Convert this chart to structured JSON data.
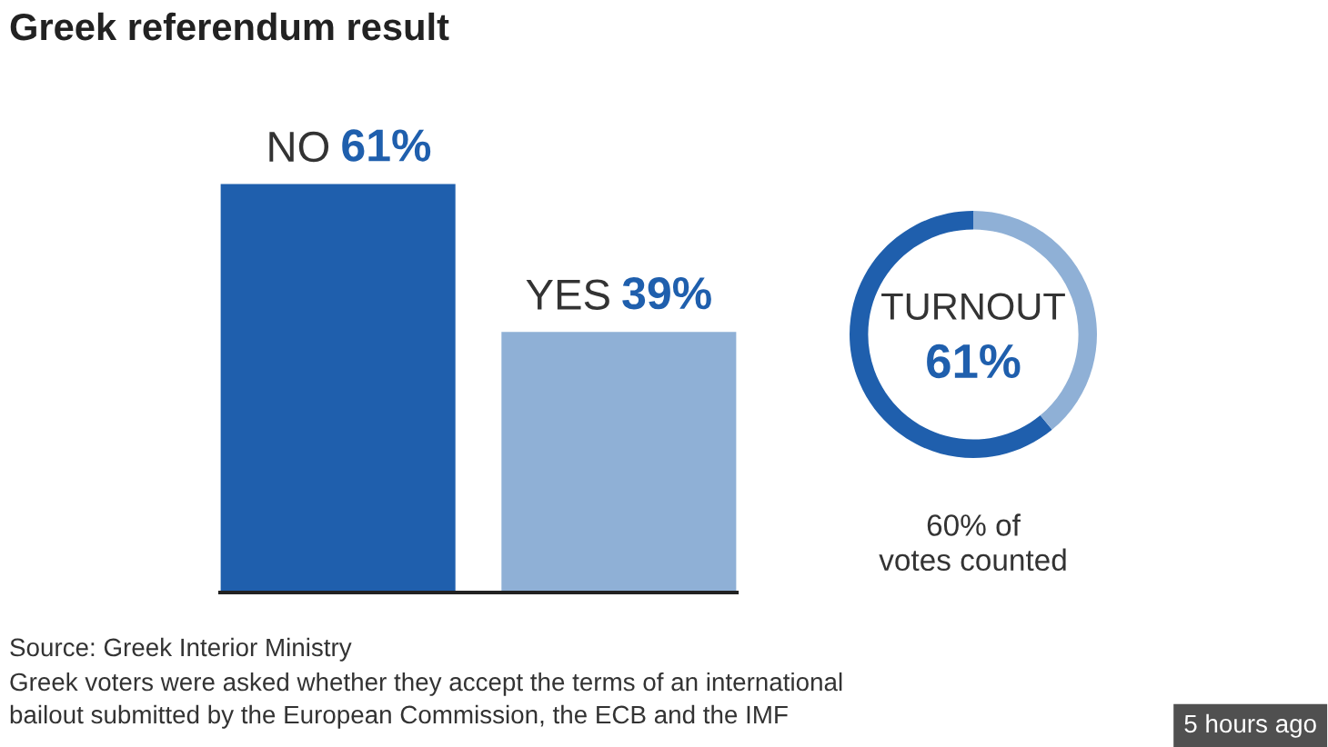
{
  "chart_data": [
    {
      "type": "bar",
      "title": "Greek referendum result",
      "categories": [
        "NO",
        "YES"
      ],
      "values": [
        61,
        39
      ],
      "colors": [
        "#1f5fad",
        "#8fb0d6"
      ],
      "value_labels": [
        "61%",
        "39%"
      ],
      "annotations": [
        "Source: Greek Interior Ministry",
        "Greek voters were asked whether they accept the terms of an international\nbailout submitted by the European Commission, the ECB and the IMF",
        "5 hours ago"
      ]
    },
    {
      "type": "donut",
      "title": "TURNOUT",
      "categories": [
        null,
        null
      ],
      "values": [
        61,
        39
      ],
      "colors": [
        "#1f5fad",
        "#8fb0d6"
      ],
      "value_labels": [
        "61%",
        null
      ],
      "annotations": [
        "60% of\nvotes counted"
      ]
    }
  ]
}
